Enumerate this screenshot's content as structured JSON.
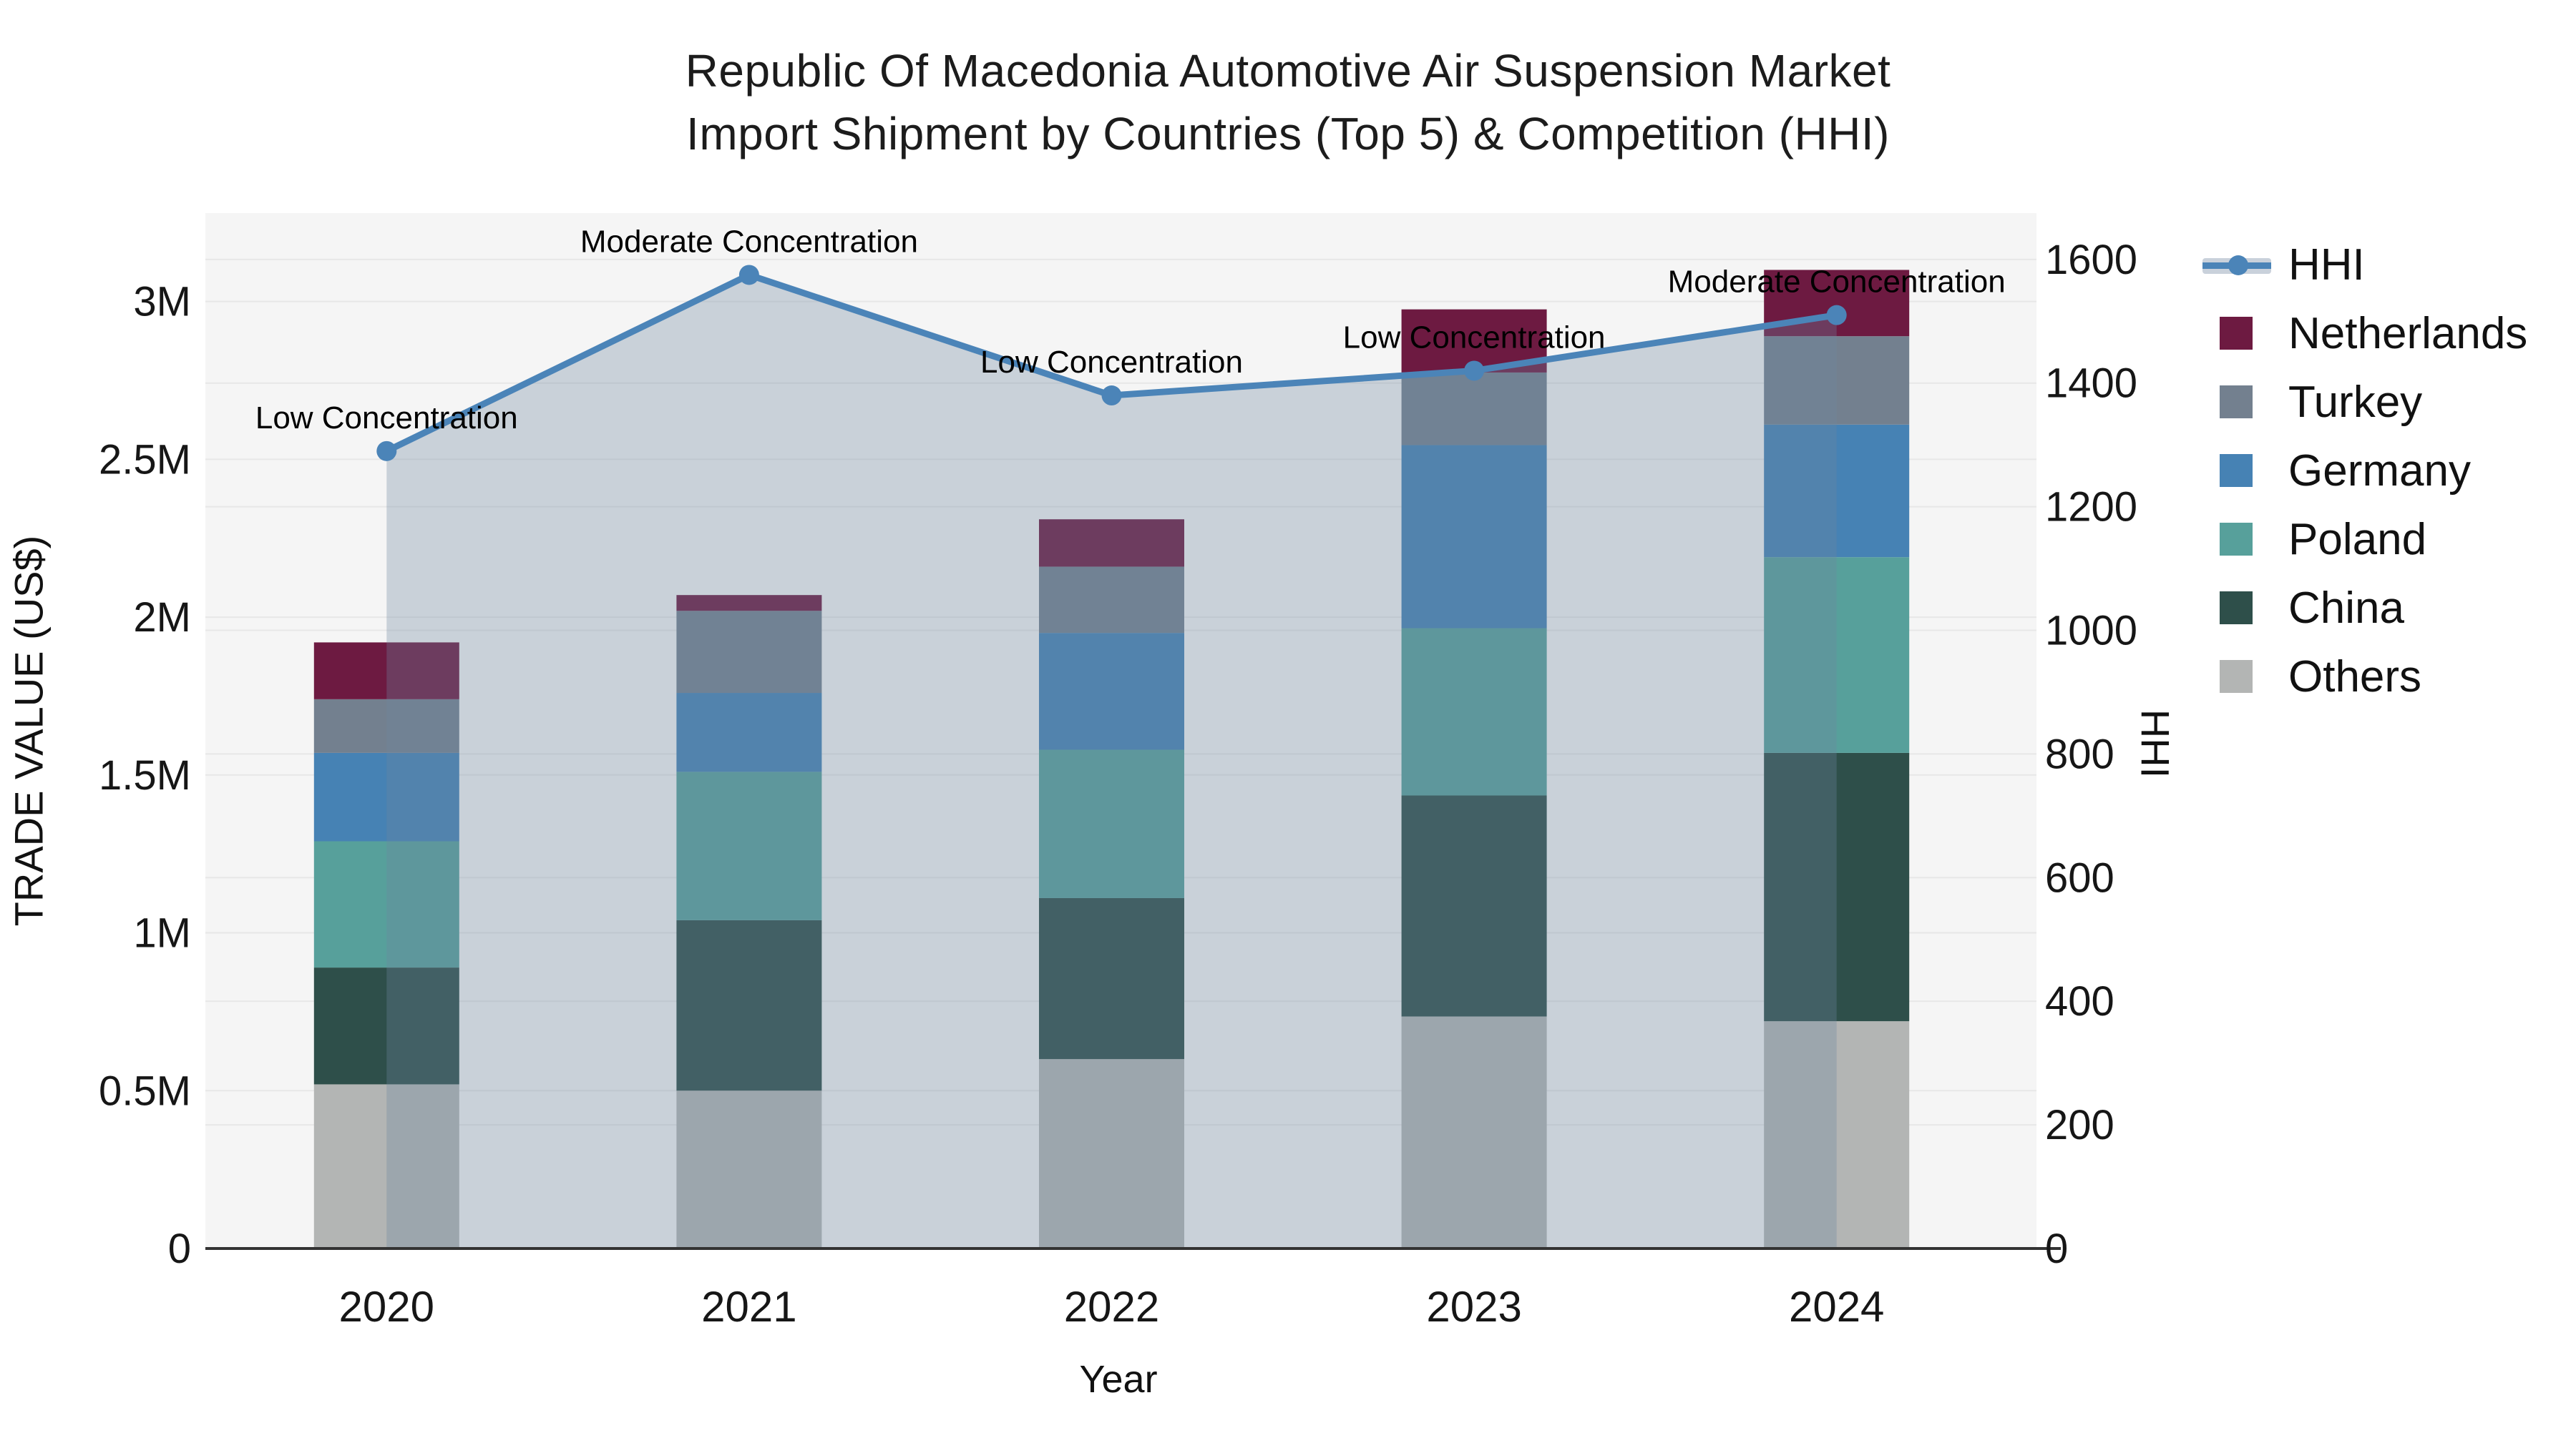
{
  "title": {
    "line1": "Republic Of Macedonia Automotive Air Suspension Market",
    "line2": "Import Shipment by Countries (Top 5) & Competition (HHI)"
  },
  "axes": {
    "x": {
      "label": "Year",
      "ticks": [
        "2020",
        "2021",
        "2022",
        "2023",
        "2024"
      ]
    },
    "y_left": {
      "label": "TRADE VALUE (US$)",
      "ticks": [
        {
          "v": 0,
          "t": "0"
        },
        {
          "v": 500000,
          "t": "0.5M"
        },
        {
          "v": 1000000,
          "t": "1M"
        },
        {
          "v": 1500000,
          "t": "1.5M"
        },
        {
          "v": 2000000,
          "t": "2M"
        },
        {
          "v": 2500000,
          "t": "2.5M"
        },
        {
          "v": 3000000,
          "t": "3M"
        }
      ]
    },
    "y_right": {
      "label": "HHI",
      "ticks": [
        {
          "v": 0,
          "t": "0"
        },
        {
          "v": 200,
          "t": "200"
        },
        {
          "v": 400,
          "t": "400"
        },
        {
          "v": 600,
          "t": "600"
        },
        {
          "v": 800,
          "t": "800"
        },
        {
          "v": 1000,
          "t": "1000"
        },
        {
          "v": 1200,
          "t": "1200"
        },
        {
          "v": 1400,
          "t": "1400"
        },
        {
          "v": 1600,
          "t": "1600"
        }
      ]
    }
  },
  "legend": [
    {
      "label": "HHI",
      "kind": "line",
      "color": "#4b84b8"
    },
    {
      "label": "Netherlands",
      "kind": "swatch",
      "color": "#6d1a41"
    },
    {
      "label": "Turkey",
      "kind": "swatch",
      "color": "#73808f"
    },
    {
      "label": "Germany",
      "kind": "swatch",
      "color": "#4682b4"
    },
    {
      "label": "Poland",
      "kind": "swatch",
      "color": "#57a09b"
    },
    {
      "label": "China",
      "kind": "swatch",
      "color": "#2e4f4a"
    },
    {
      "label": "Others",
      "kind": "swatch",
      "color": "#b3b5b4"
    }
  ],
  "chart_data": {
    "type": "combo: stacked bar (left axis) + line with area fill (right axis)",
    "categories": [
      "2020",
      "2021",
      "2022",
      "2023",
      "2024"
    ],
    "bar_value_unit": "US$",
    "stack_order_bottom_to_top": [
      "Others",
      "China",
      "Poland",
      "Germany",
      "Turkey",
      "Netherlands"
    ],
    "series": [
      {
        "name": "Others",
        "color": "#b3b5b4",
        "values": [
          520000,
          500000,
          600000,
          735000,
          720000
        ]
      },
      {
        "name": "China",
        "color": "#2e4f4a",
        "values": [
          370000,
          540000,
          510000,
          700000,
          850000
        ]
      },
      {
        "name": "Poland",
        "color": "#57a09b",
        "values": [
          400000,
          470000,
          470000,
          530000,
          620000
        ]
      },
      {
        "name": "Germany",
        "color": "#4682b4",
        "values": [
          280000,
          250000,
          370000,
          580000,
          420000
        ]
      },
      {
        "name": "Turkey",
        "color": "#73808f",
        "values": [
          170000,
          260000,
          210000,
          230000,
          280000
        ]
      },
      {
        "name": "Netherlands",
        "color": "#6d1a41",
        "values": [
          180000,
          50000,
          150000,
          200000,
          210000
        ]
      }
    ],
    "bar_totals": [
      1920000,
      2070000,
      2310000,
      2975000,
      3100000
    ],
    "line": {
      "name": "HHI",
      "color": "#4b84b8",
      "area_fill": "rgba(110,134,160,0.32)",
      "values": [
        1290,
        1575,
        1380,
        1420,
        1510
      ],
      "annotations": [
        "Low Concentration",
        "Moderate Concentration",
        "Low Concentration",
        "Low Concentration",
        "Moderate Concentration"
      ]
    },
    "y_left_axis_max": 3280000,
    "y_right_axis_max": 1675,
    "grid": true,
    "legend_position": "right",
    "plot_background": "#f5f5f5",
    "gridline_color": "#e7e7e7"
  }
}
